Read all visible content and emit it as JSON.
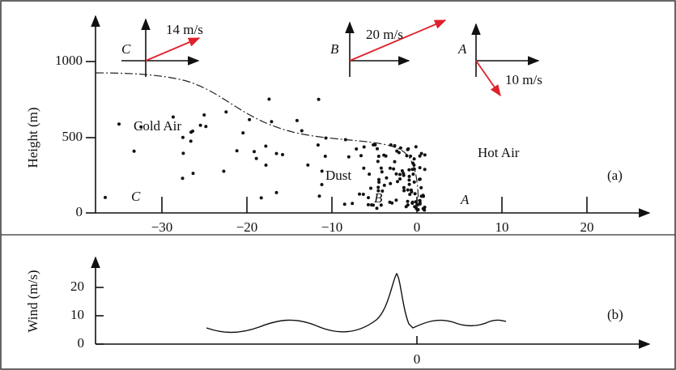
{
  "panel_a": {
    "y_axis_label": "Height (m)",
    "y_ticks": [
      "0",
      "500",
      "1000"
    ],
    "x_ticks": [
      "−30",
      "−20",
      "−10",
      "0",
      "10",
      "20"
    ],
    "labels": {
      "cold_air": "Cold Air",
      "hot_air": "Hot Air",
      "dust": "Dust",
      "panel": "(a)"
    },
    "ground_positions": [
      "C",
      "B",
      "A"
    ],
    "vectors": [
      {
        "label": "C",
        "speed": "14 m/s"
      },
      {
        "label": "B",
        "speed": "20 m/s"
      },
      {
        "label": "A",
        "speed": "10 m/s"
      }
    ]
  },
  "panel_b": {
    "y_axis_label": "Wind (m/s)",
    "y_ticks": [
      "0",
      "10",
      "20"
    ],
    "x_ticks": [
      "0"
    ],
    "panel": "(b)"
  }
}
